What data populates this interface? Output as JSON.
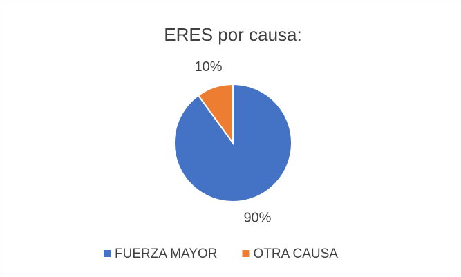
{
  "chart_data": {
    "type": "pie",
    "title": "ERES por causa:",
    "categories": [
      "FUERZA MAYOR",
      "OTRA CAUSA"
    ],
    "values": [
      90,
      10
    ],
    "value_labels": [
      "90%",
      "10%"
    ],
    "colors": [
      "#4472c4",
      "#ed7d31"
    ],
    "legend": "bottom"
  }
}
